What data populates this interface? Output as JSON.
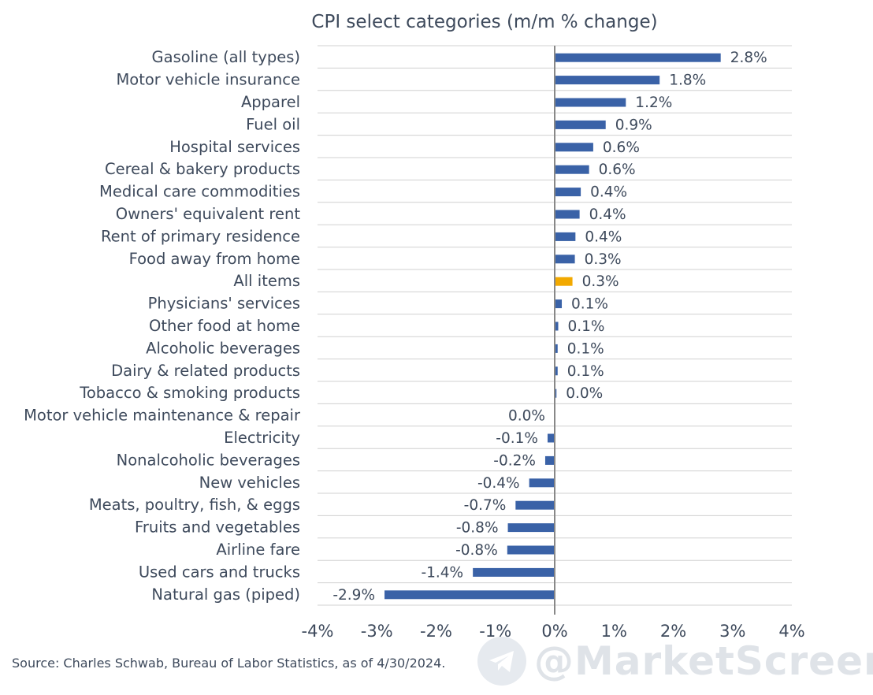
{
  "chart_data": {
    "type": "bar",
    "orientation": "horizontal",
    "title": "CPI select categories (m/m % change)",
    "xlabel": "",
    "ylabel": "",
    "xlim": [
      -4,
      4
    ],
    "x_ticks": [
      "-4%",
      "-3%",
      "-2%",
      "-1%",
      "0%",
      "1%",
      "2%",
      "3%",
      "4%"
    ],
    "x_tick_values": [
      -4,
      -3,
      -2,
      -1,
      0,
      1,
      2,
      3,
      4
    ],
    "grid": true,
    "categories": [
      "Gasoline (all types)",
      "Motor vehicle insurance",
      "Apparel",
      "Fuel oil",
      "Hospital services",
      "Cereal & bakery products",
      "Medical care commodities",
      "Owners' equivalent rent",
      "Rent of primary residence",
      "Food away from home",
      "All items",
      "Physicians' services",
      "Other food at home",
      "Alcoholic beverages",
      "Dairy & related products",
      "Tobacco & smoking products",
      "Motor vehicle maintenance & repair",
      "Electricity",
      "Nonalcoholic beverages",
      "New vehicles",
      "Meats, poultry, fish, & eggs",
      "Fruits and vegetables",
      "Airline fare",
      "Used cars and trucks",
      "Natural gas (piped)"
    ],
    "values": [
      2.8,
      1.77,
      1.2,
      0.86,
      0.65,
      0.58,
      0.44,
      0.42,
      0.35,
      0.34,
      0.3,
      0.12,
      0.06,
      0.05,
      0.05,
      0.03,
      0.0,
      -0.12,
      -0.16,
      -0.43,
      -0.66,
      -0.79,
      -0.8,
      -1.38,
      -2.87
    ],
    "labels": [
      "2.8%",
      "1.8%",
      "1.2%",
      "0.9%",
      "0.6%",
      "0.6%",
      "0.4%",
      "0.4%",
      "0.4%",
      "0.3%",
      "0.3%",
      "0.1%",
      "0.1%",
      "0.1%",
      "0.1%",
      "0.0%",
      "0.0%",
      "-0.1%",
      "-0.2%",
      "-0.4%",
      "-0.7%",
      "-0.8%",
      "-0.8%",
      "-1.4%",
      "-2.9%"
    ],
    "highlight_category": "All items",
    "colors": {
      "bar": "#3a62a7",
      "highlight": "#f2a900",
      "grid": "#d0d0d0",
      "axis": "#888888",
      "text": "#3e4a5c"
    }
  },
  "source": "Source: Charles Schwab, Bureau of Labor Statistics, as of 4/30/2024.",
  "watermark": {
    "text": "@MarketScreen",
    "icon": "telegram-icon"
  }
}
